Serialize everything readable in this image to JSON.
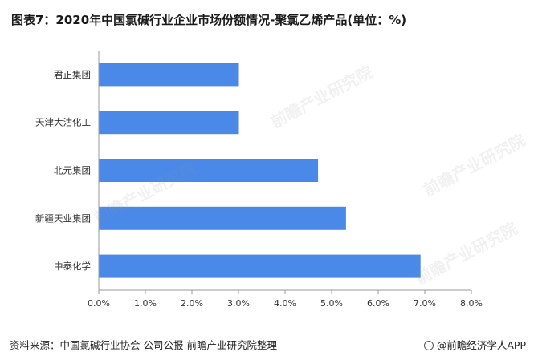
{
  "title": "图表7：2020年中国氯碱行业企业市场份额情况-聚氯乙烯产品(单位：%)",
  "source": "资料来源：中国氯碱行业协会 公司公报 前瞻产业研究院整理",
  "brand": "@前瞻经济学人APP",
  "watermark": "前瞻产业研究院",
  "colors": {
    "bar": "#4a89e8",
    "axis": "#999999",
    "text": "#333333"
  },
  "chart_data": {
    "type": "bar",
    "orientation": "horizontal",
    "title": "图表7：2020年中国氯碱行业企业市场份额情况-聚氯乙烯产品(单位：%)",
    "categories": [
      "君正集团",
      "天津大沽化工",
      "北元集团",
      "新疆天业集团",
      "中泰化学"
    ],
    "values": [
      3.0,
      3.0,
      4.7,
      5.3,
      6.9
    ],
    "xlim": [
      0,
      8
    ],
    "xticks": [
      0,
      1,
      2,
      3,
      4,
      5,
      6,
      7,
      8
    ],
    "xtick_labels": [
      "0.0%",
      "1.0%",
      "2.0%",
      "3.0%",
      "4.0%",
      "5.0%",
      "6.0%",
      "7.0%",
      "8.0%"
    ],
    "xlabel": "",
    "ylabel": "",
    "grid": false,
    "legend": "none"
  }
}
